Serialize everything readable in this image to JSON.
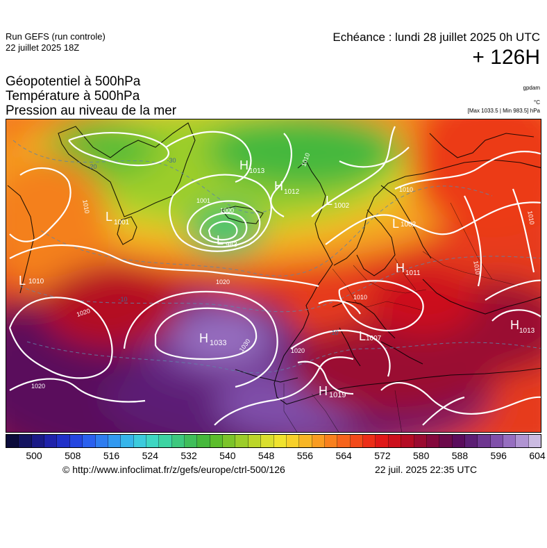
{
  "header": {
    "run_line1": "Run GEFS (run controle)",
    "run_line2": "22 juillet 2025 18Z",
    "echeance": "Echéance : lundi 28 juillet 2025 0h UTC",
    "horizon": "+ 126H"
  },
  "titles": {
    "line1": "Géopotentiel à 500hPa",
    "line2": "Température à 500hPa",
    "line3": "Pression au niveau de la mer"
  },
  "units": {
    "geopotential": "gpdam",
    "temperature": "°C",
    "pressure_range": "[Max 1033.5 | Min 983.5] hPa"
  },
  "map": {
    "pressure_centers": [
      {
        "type": "H",
        "value": "1013"
      },
      {
        "type": "H",
        "value": "1012"
      },
      {
        "type": "L",
        "value": "1002"
      },
      {
        "type": "L",
        "value": "1001"
      },
      {
        "type": "L",
        "value": "983"
      },
      {
        "type": "L",
        "value": "1002"
      },
      {
        "type": "L",
        "value": "1010"
      },
      {
        "type": "H",
        "value": "1033"
      },
      {
        "type": "H",
        "value": "1019"
      },
      {
        "type": "L",
        "value": "1007"
      },
      {
        "type": "H",
        "value": "1011"
      },
      {
        "type": "H",
        "value": "1013"
      }
    ],
    "isobar_labels": [
      "1010",
      "1000",
      "1020",
      "1020",
      "1030",
      "1020",
      "1020",
      "1010",
      "1010",
      "1010",
      "1010",
      "1010",
      "1001"
    ],
    "temperature_labels": [
      "-20",
      "-30",
      "-10",
      "-10"
    ]
  },
  "colorbar": {
    "colors": [
      "#0b0b3a",
      "#141460",
      "#1a1a86",
      "#1f22aa",
      "#2030c8",
      "#2446e0",
      "#2a60ee",
      "#2e7df0",
      "#3299f0",
      "#36b5ea",
      "#3ccbdc",
      "#3ed6c2",
      "#3dd4a2",
      "#3ec87e",
      "#40be5a",
      "#46b83c",
      "#5cbd2c",
      "#7cc42a",
      "#9ccd2a",
      "#bcd62a",
      "#dadf2e",
      "#f0e32e",
      "#f7d02a",
      "#f8b626",
      "#f99c22",
      "#f8801e",
      "#f6641c",
      "#f24a1a",
      "#ec2e18",
      "#e01818",
      "#cc101c",
      "#b40c24",
      "#9a0a30",
      "#84083c",
      "#6c0a4a",
      "#5a0c5c",
      "#5c1e74",
      "#6e3690",
      "#8050aa",
      "#966ec0",
      "#b094d2",
      "#cbbbe2"
    ],
    "tick_labels": [
      "500",
      "508",
      "516",
      "524",
      "532",
      "540",
      "548",
      "556",
      "564",
      "572",
      "580",
      "588",
      "596",
      "604"
    ]
  },
  "footer": {
    "copyright": "© http://www.infoclimat.fr/z/gefs/europe/ctrl-500/126",
    "generated": "22 juil. 2025 22:35 UTC"
  }
}
